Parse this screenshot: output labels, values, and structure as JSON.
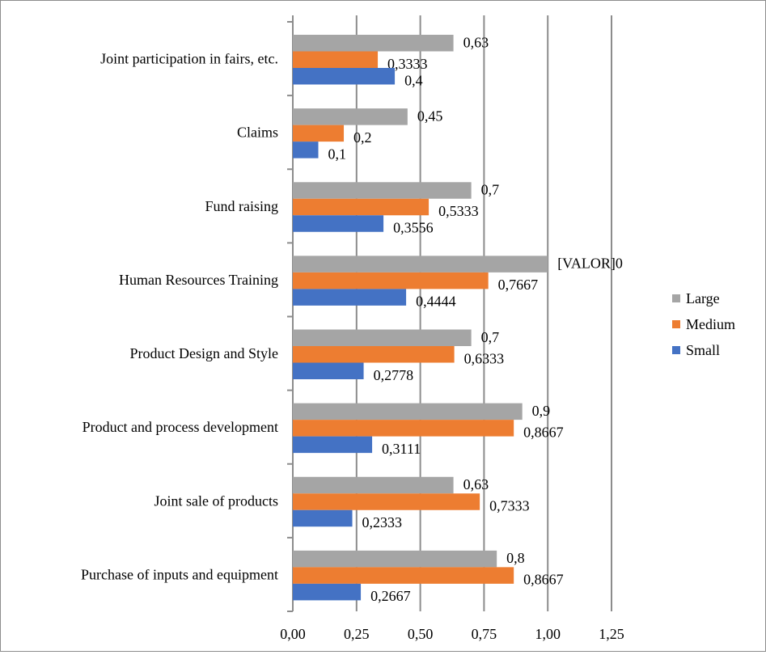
{
  "chart_data": {
    "type": "bar",
    "orientation": "horizontal",
    "title": "",
    "xlabel": "",
    "ylabel": "",
    "xlim": [
      0,
      1.25
    ],
    "x_ticks": [
      "0,00",
      "0,25",
      "0,50",
      "0,75",
      "1,00",
      "1,25"
    ],
    "grid": true,
    "legend_position": "right",
    "categories": [
      "Joint participation in fairs, etc.",
      "Claims",
      "Fund raising",
      "Human Resources Training",
      "Product Design and Style",
      "Product and process development",
      "Joint sale of products",
      "Purchase of inputs and equipment"
    ],
    "series": [
      {
        "name": "Large",
        "color": "#A5A5A5",
        "values": [
          0.63,
          0.45,
          0.7,
          1.0,
          0.7,
          0.9,
          0.63,
          0.8
        ],
        "labels": [
          "0,63",
          "0,45",
          "0,7",
          "[VALOR]0",
          "0,7",
          "0,9",
          "0,63",
          "0,8"
        ]
      },
      {
        "name": "Medium",
        "color": "#ED7D31",
        "values": [
          0.3333,
          0.2,
          0.5333,
          0.7667,
          0.6333,
          0.8667,
          0.7333,
          0.8667
        ],
        "labels": [
          "0,3333",
          "0,2",
          "0,5333",
          "0,7667",
          "0,6333",
          "0,8667",
          "0,7333",
          "0,8667"
        ]
      },
      {
        "name": "Small",
        "color": "#4472C4",
        "values": [
          0.4,
          0.1,
          0.3556,
          0.4444,
          0.2778,
          0.3111,
          0.2333,
          0.2667
        ],
        "labels": [
          "0,4",
          "0,1",
          "0,3556",
          "0,4444",
          "0,2778",
          "0,3111",
          "0,2333",
          "0,2667"
        ]
      }
    ],
    "legend_order": [
      "Large",
      "Medium",
      "Small"
    ]
  }
}
